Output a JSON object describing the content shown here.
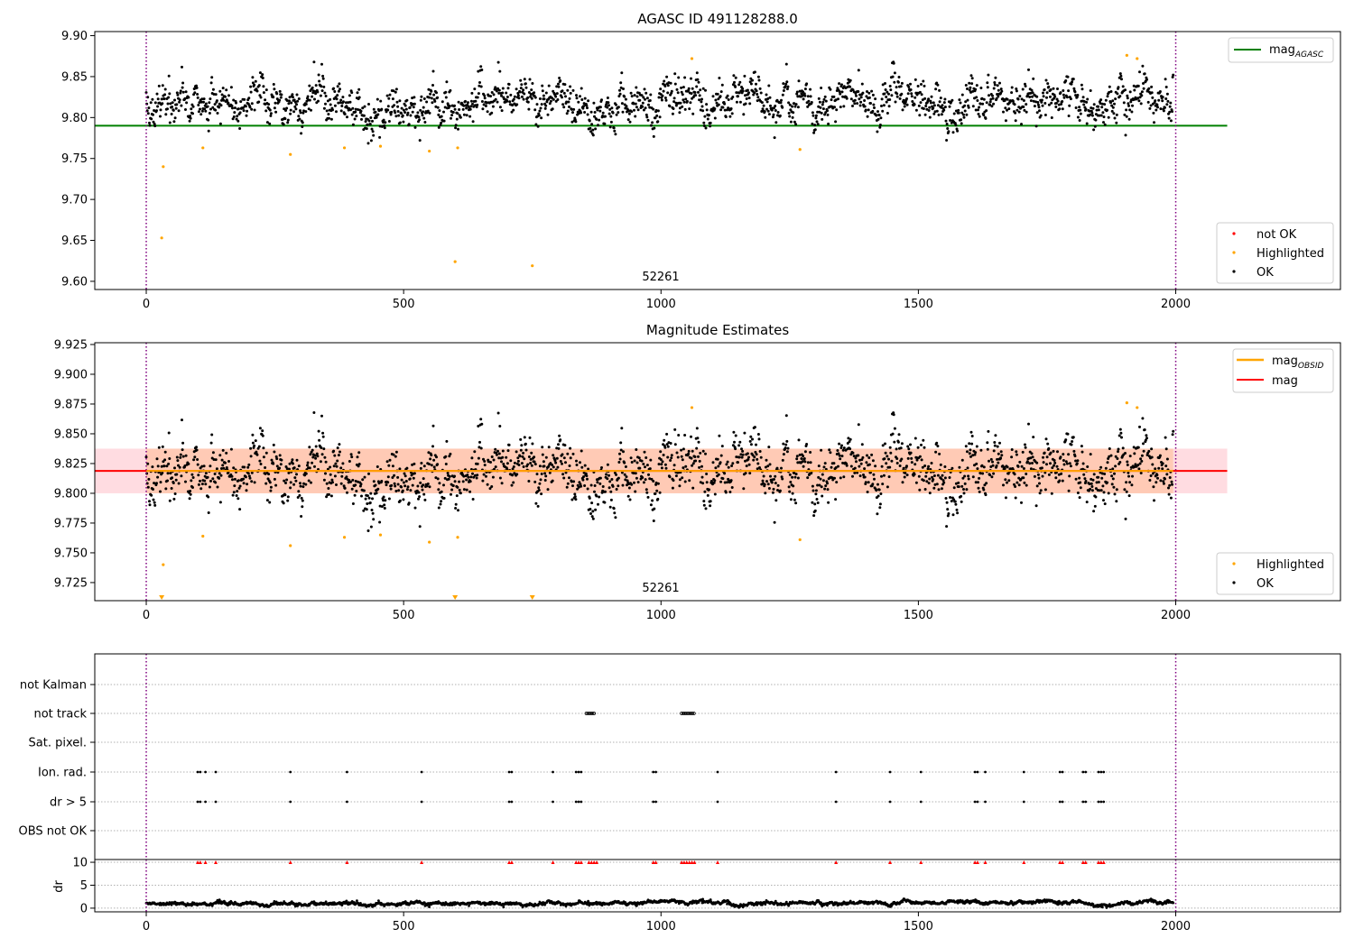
{
  "chart_data": [
    {
      "type": "scatter",
      "title": "AGASC ID 491128288.0",
      "xlim": [
        -100,
        2320
      ],
      "ylim": [
        9.59,
        9.905
      ],
      "x_ticks": [
        0,
        500,
        1000,
        1500,
        2000
      ],
      "y_ticks": [
        9.6,
        9.65,
        9.7,
        9.75,
        9.8,
        9.85,
        9.9
      ],
      "grid": false,
      "vlines": [
        0,
        2000
      ],
      "annotation": {
        "text": "52261",
        "x": 1000
      },
      "hlines": [
        {
          "name": "mag_AGASC",
          "y": 9.79,
          "x_range": [
            -100,
            2100
          ],
          "color": "#008000"
        }
      ],
      "legend_lines": {
        "placement": "top-right",
        "entries": [
          {
            "label": "mag",
            "sub": "AGASC",
            "color": "#008000"
          }
        ]
      },
      "legend_points": {
        "placement": "bottom-right",
        "entries": [
          {
            "label": "not OK",
            "color": "#ff0000"
          },
          {
            "label": "Highlighted",
            "color": "#ffa500"
          },
          {
            "label": "OK",
            "color": "#000000"
          }
        ]
      },
      "series": [
        {
          "name": "OK",
          "color": "#000000",
          "n_points": 1990,
          "x_range": [
            0,
            1995
          ],
          "y_center": 9.818,
          "y_spread": 0.018
        },
        {
          "name": "Highlighted",
          "color": "#ffa500",
          "points": [
            [
              30,
              9.653
            ],
            [
              33,
              9.74
            ],
            [
              110,
              9.763
            ],
            [
              280,
              9.755
            ],
            [
              385,
              9.763
            ],
            [
              455,
              9.765
            ],
            [
              550,
              9.759
            ],
            [
              600,
              9.624
            ],
            [
              605,
              9.763
            ],
            [
              750,
              9.619
            ],
            [
              1060,
              9.872
            ],
            [
              1270,
              9.761
            ],
            [
              1905,
              9.876
            ],
            [
              1925,
              9.872
            ]
          ]
        }
      ]
    },
    {
      "type": "scatter",
      "title": "Magnitude Estimates",
      "xlim": [
        -100,
        2320
      ],
      "ylim": [
        9.7098,
        9.9265
      ],
      "x_ticks": [
        0,
        500,
        1000,
        1500,
        2000
      ],
      "y_ticks": [
        9.725,
        9.75,
        9.775,
        9.8,
        9.825,
        9.85,
        9.875,
        9.9,
        9.925
      ],
      "grid": false,
      "vlines": [
        0,
        2000
      ],
      "annotation": {
        "text": "52261",
        "x": 1000
      },
      "hlines": [
        {
          "name": "mag_OBSID",
          "y": 9.8188,
          "x_range": [
            0,
            1995
          ],
          "color": "#ffa500"
        },
        {
          "name": "mag",
          "y": 9.8188,
          "x_range": [
            -100,
            2100
          ],
          "color": "#ff0000"
        }
      ],
      "bands": [
        {
          "y": [
            9.8,
            9.8375
          ],
          "x_range": [
            -100,
            2100
          ],
          "color": "#ffc0c8"
        }
      ],
      "legend_lines": {
        "placement": "top-right",
        "entries": [
          {
            "label": "mag",
            "sub": "OBSID",
            "color": "#ffa500"
          },
          {
            "label": "mag",
            "sub": "",
            "color": "#ff0000"
          }
        ]
      },
      "legend_points": {
        "placement": "bottom-right",
        "entries": [
          {
            "label": "Highlighted",
            "color": "#ffa500"
          },
          {
            "label": "OK",
            "color": "#000000"
          }
        ]
      },
      "series": [
        {
          "name": "OK",
          "color": "#000000",
          "n_points": 1990,
          "x_range": [
            0,
            1995
          ],
          "y_center": 9.818,
          "y_spread": 0.018
        },
        {
          "name": "Highlighted",
          "color": "#ffa500",
          "points": [
            [
              33,
              9.74
            ],
            [
              110,
              9.764
            ],
            [
              280,
              9.756
            ],
            [
              385,
              9.763
            ],
            [
              455,
              9.765
            ],
            [
              550,
              9.759
            ],
            [
              605,
              9.763
            ],
            [
              1060,
              9.872
            ],
            [
              1270,
              9.761
            ],
            [
              1905,
              9.876
            ],
            [
              1925,
              9.872
            ]
          ]
        },
        {
          "name": "Highlighted-below-range",
          "color": "#ffa500",
          "marker": "triangle-down",
          "x": [
            30,
            600,
            750
          ]
        }
      ]
    },
    {
      "type": "scatter",
      "title": "",
      "xlim": [
        -100,
        2320
      ],
      "x_ticks": [
        0,
        500,
        1000,
        1500,
        2000
      ],
      "vlines": [
        0,
        2000
      ],
      "flag_rows": [
        "not Kalman",
        "not track",
        "Sat. pixel.",
        "Ion. rad.",
        "dr > 5",
        "OBS not OK"
      ],
      "flag_points": {
        "not track": [
          [
            855,
            870
          ],
          [
            1040,
            1065
          ]
        ],
        "Ion. rad.": [
          100,
          105,
          115,
          135,
          280,
          390,
          535,
          705,
          710,
          790,
          835,
          840,
          845,
          985,
          990,
          1110,
          1340,
          1445,
          1505,
          1610,
          1615,
          1630,
          1705,
          1775,
          1780,
          1820,
          1825,
          1850,
          1855,
          1860
        ],
        "dr > 5": [
          100,
          105,
          115,
          135,
          280,
          390,
          535,
          705,
          710,
          790,
          835,
          840,
          845,
          985,
          990,
          1110,
          1340,
          1445,
          1505,
          1610,
          1615,
          1630,
          1705,
          1775,
          1780,
          1820,
          1825,
          1850,
          1855,
          1860
        ]
      },
      "dr_panel": {
        "ylabel": "dr",
        "y_ticks": [
          0,
          5,
          10
        ],
        "ylim": [
          -0.8,
          10.6
        ],
        "clipped_value": 10,
        "clipped_color": "#ff0000",
        "clipped_x": [
          100,
          105,
          115,
          135,
          280,
          390,
          535,
          705,
          710,
          790,
          835,
          840,
          845,
          860,
          865,
          870,
          875,
          985,
          990,
          1040,
          1045,
          1050,
          1055,
          1060,
          1065,
          1110,
          1340,
          1445,
          1505,
          1610,
          1615,
          1630,
          1705,
          1775,
          1780,
          1820,
          1825,
          1850,
          1855,
          1860
        ],
        "series": {
          "name": "dr",
          "color": "#000000",
          "n_points": 1990,
          "x_range": [
            0,
            1995
          ],
          "y_center": 1.1,
          "y_spread": 0.6
        }
      }
    }
  ]
}
